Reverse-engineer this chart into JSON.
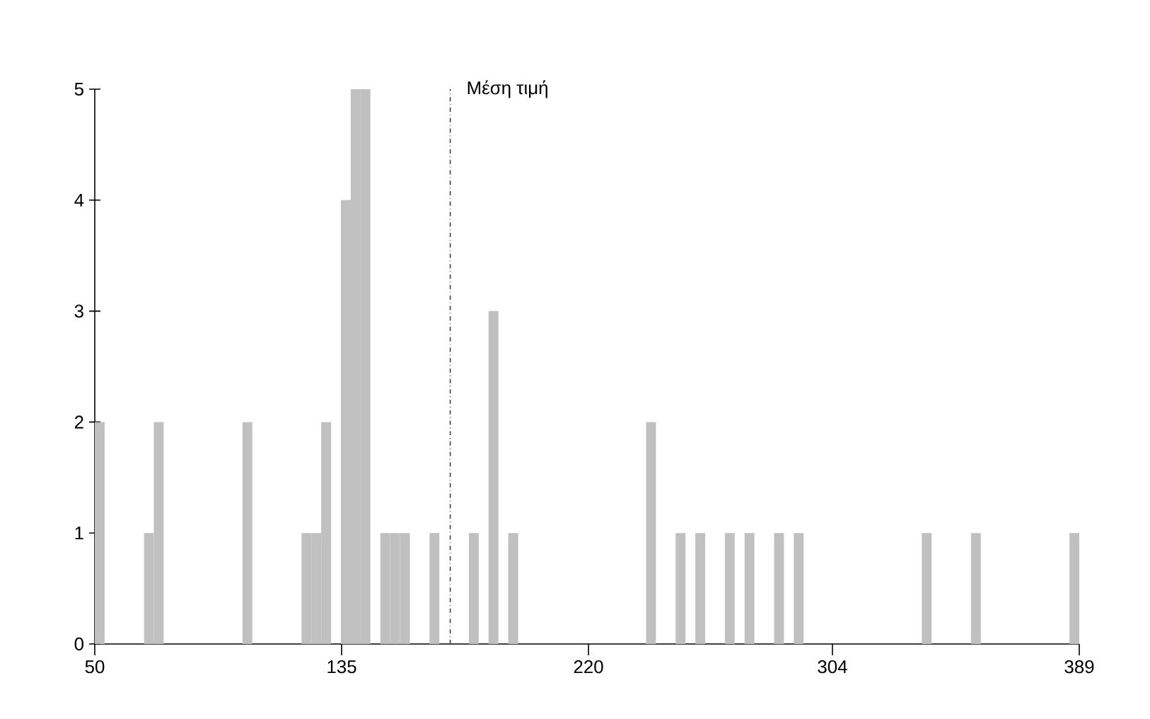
{
  "chart_data": {
    "type": "histogram",
    "bins": [
      50,
      53.39,
      56.78,
      60.17,
      63.56,
      66.95,
      70.34,
      73.73,
      77.12,
      80.51,
      83.9,
      87.29,
      90.68,
      94.07,
      97.46,
      100.85,
      104.24,
      107.63,
      111.02,
      114.41,
      117.8,
      121.19,
      124.58,
      127.97,
      131.36,
      134.75,
      138.14,
      141.53,
      144.92,
      148.31,
      151.7,
      155.09,
      158.48,
      161.87,
      165.26,
      168.65,
      172.04,
      175.43,
      178.82,
      182.21,
      185.6,
      188.99,
      192.38,
      195.77,
      199.16,
      202.55,
      205.94,
      209.33,
      212.72,
      216.11,
      219.5,
      222.89,
      226.28,
      229.67,
      233.06,
      236.45,
      239.84,
      243.23,
      246.62,
      250.01,
      253.4,
      256.79,
      260.18,
      263.57,
      266.96,
      270.35,
      273.74,
      277.13,
      280.52,
      283.91,
      287.3,
      290.69,
      294.08,
      297.47,
      300.86,
      304.25,
      307.64,
      311.03,
      314.42,
      317.81,
      321.2,
      324.59,
      327.98,
      331.37,
      334.76,
      338.15,
      341.54,
      344.93,
      348.32,
      351.71,
      355.1,
      358.49,
      361.88,
      365.27,
      368.66,
      372.05,
      375.44,
      378.83,
      382.22,
      385.61,
      389
    ],
    "values": [
      2,
      0,
      0,
      0,
      0,
      1,
      2,
      0,
      0,
      0,
      0,
      0,
      0,
      0,
      0,
      2,
      0,
      0,
      0,
      0,
      0,
      1,
      1,
      2,
      0,
      4,
      5,
      5,
      0,
      1,
      1,
      1,
      0,
      0,
      1,
      0,
      0,
      0,
      1,
      0,
      3,
      0,
      1,
      0,
      0,
      0,
      0,
      0,
      0,
      0,
      0,
      0,
      0,
      0,
      0,
      0,
      2,
      0,
      0,
      1,
      0,
      1,
      0,
      0,
      1,
      0,
      1,
      0,
      0,
      1,
      0,
      1,
      0,
      0,
      0,
      0,
      0,
      0,
      0,
      0,
      0,
      0,
      0,
      0,
      1,
      0,
      0,
      0,
      0,
      1,
      0,
      0,
      0,
      0,
      0,
      0,
      0,
      0,
      0,
      1
    ],
    "color": "#c0c0c0",
    "xlim": [
      50,
      389
    ],
    "ylim": [
      0,
      5
    ],
    "xticks": [
      50,
      135,
      220,
      304,
      389
    ],
    "yticks": [
      0,
      1,
      2,
      3,
      4,
      5
    ],
    "ref_lines": [
      {
        "axis": "x",
        "value": 172.4,
        "label": "Μέση τιμή",
        "color": "#404040",
        "line_style": "dashdot"
      }
    ]
  }
}
